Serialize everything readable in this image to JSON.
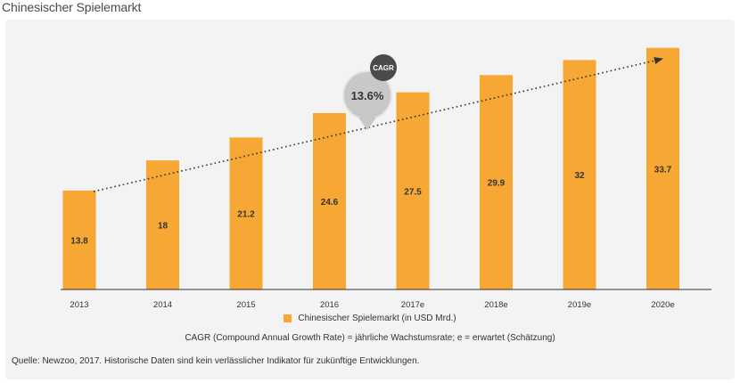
{
  "page": {
    "title": "Chinesischer Spielemarkt",
    "legend_label": "Chinesischer Spielemarkt (in USD Mrd.)",
    "note": "CAGR (Compound Annual Growth Rate) = jährliche Wachstumsrate; e = erwartet (Schätzung)",
    "source": "Quelle: Newzoo, 2017. Historische Daten sind kein verlässlicher Indikator für zukünftige Entwicklungen."
  },
  "callout": {
    "badge": "CAGR",
    "value": "13.6%"
  },
  "colors": {
    "bar": "#f7a733",
    "bubble": "#c8c8c8",
    "badge": "#4a4a4a",
    "trend": "#333333",
    "axis": "#333333"
  },
  "chart_data": {
    "type": "bar",
    "categories": [
      "2013",
      "2014",
      "2015",
      "2016",
      "2017e",
      "2018e",
      "2019e",
      "2020e"
    ],
    "series": [
      {
        "name": "Chinesischer Spielemarkt (in USD Mrd.)",
        "values": [
          13.8,
          18,
          21.2,
          24.6,
          27.5,
          29.9,
          32,
          33.7
        ]
      }
    ],
    "data_labels": [
      "13.8",
      "18",
      "21.2",
      "24.6",
      "27.5",
      "29.9",
      "32",
      "33.7"
    ],
    "title": "Chinesischer Spielemarkt",
    "xlabel": "",
    "ylabel": "",
    "ylim": [
      0,
      35
    ],
    "grid": false,
    "legend": "bottom-center",
    "trendline": {
      "label": "CAGR",
      "value": "13.6%",
      "style": "dotted arrow"
    }
  }
}
